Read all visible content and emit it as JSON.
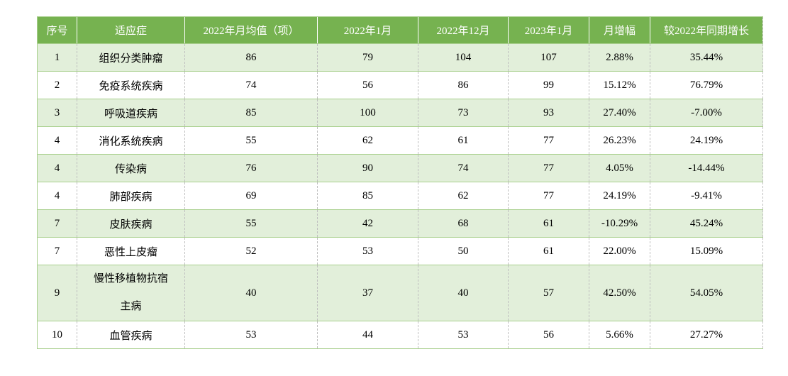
{
  "chart_data": {
    "type": "table",
    "title": "",
    "columns": [
      "序号",
      "适应症",
      "2022年月均值（项）",
      "2022年1月",
      "2022年12月",
      "2023年1月",
      "月增幅",
      "较2022年同期增长"
    ],
    "rows": [
      [
        "1",
        "组织分类肿瘤",
        "86",
        "79",
        "104",
        "107",
        "2.88%",
        "35.44%"
      ],
      [
        "2",
        "免疫系统疾病",
        "74",
        "56",
        "86",
        "99",
        "15.12%",
        "76.79%"
      ],
      [
        "3",
        "呼吸道疾病",
        "85",
        "100",
        "73",
        "93",
        "27.40%",
        "-7.00%"
      ],
      [
        "4",
        "消化系统疾病",
        "55",
        "62",
        "61",
        "77",
        "26.23%",
        "24.19%"
      ],
      [
        "4",
        "传染病",
        "76",
        "90",
        "74",
        "77",
        "4.05%",
        "-14.44%"
      ],
      [
        "4",
        "肺部疾病",
        "69",
        "85",
        "62",
        "77",
        "24.19%",
        "-9.41%"
      ],
      [
        "7",
        "皮肤疾病",
        "55",
        "42",
        "68",
        "61",
        "-10.29%",
        "45.24%"
      ],
      [
        "7",
        "恶性上皮瘤",
        "52",
        "53",
        "50",
        "61",
        "22.00%",
        "15.09%"
      ],
      [
        "9",
        "慢性移植物抗宿主病",
        "40",
        "37",
        "40",
        "57",
        "42.50%",
        "54.05%"
      ],
      [
        "10",
        "血管疾病",
        "53",
        "44",
        "53",
        "56",
        "5.66%",
        "27.27%"
      ]
    ],
    "layout_hints": {
      "banded_rows": true,
      "first_body_row_banded": true,
      "all_cells_centered": true
    }
  },
  "colors": {
    "header_bg": "#76B250",
    "band_bg": "#E2EFDA",
    "row_border_green": "#A9D08E",
    "column_border_gray": "#BFBFBF",
    "header_text": "#FFFFFF",
    "body_text": "#000000",
    "page_bg": "#FFFFFF"
  }
}
